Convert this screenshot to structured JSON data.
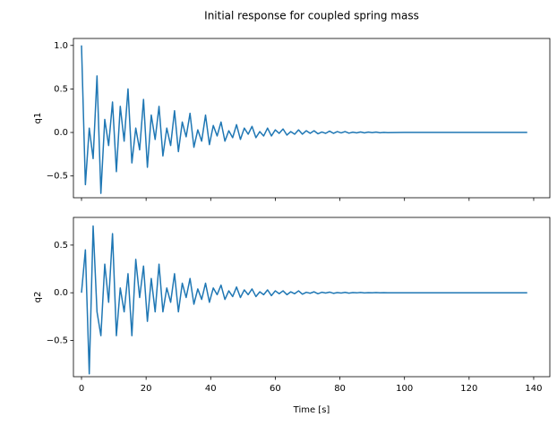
{
  "chart_data": [
    {
      "type": "line",
      "title": "Initial response for coupled spring mass",
      "ylabel": "q1",
      "color": "#1f77b4",
      "x": [
        0,
        1.2,
        2.4,
        3.6,
        4.8,
        6,
        7.2,
        8.4,
        9.6,
        10.8,
        12,
        13.2,
        14.4,
        15.6,
        16.8,
        18,
        19.2,
        20.4,
        21.6,
        22.8,
        24,
        25.2,
        26.4,
        27.6,
        28.8,
        30,
        31.2,
        32.4,
        33.6,
        34.8,
        36,
        37.2,
        38.4,
        39.6,
        40.8,
        42,
        43.2,
        44.4,
        45.6,
        46.8,
        48,
        49.2,
        50.4,
        51.6,
        52.8,
        54,
        55.2,
        56.4,
        57.6,
        58.8,
        60,
        61.2,
        62.4,
        63.6,
        64.8,
        66,
        67.2,
        68.4,
        69.6,
        70.8,
        72,
        73.2,
        74.4,
        75.6,
        76.8,
        78,
        79.2,
        80.4,
        81.6,
        82.8,
        84,
        85.2,
        86.4,
        87.6,
        88.8,
        90,
        91.2,
        92.4,
        93.6,
        94.8,
        100,
        110,
        120,
        130,
        138
      ],
      "values": [
        1.0,
        -0.6,
        0.05,
        -0.3,
        0.65,
        -0.7,
        0.15,
        -0.15,
        0.35,
        -0.45,
        0.3,
        -0.1,
        0.5,
        -0.35,
        0.05,
        -0.2,
        0.38,
        -0.4,
        0.2,
        -0.08,
        0.3,
        -0.27,
        0.05,
        -0.15,
        0.25,
        -0.22,
        0.12,
        -0.05,
        0.22,
        -0.17,
        0.03,
        -0.1,
        0.2,
        -0.14,
        0.08,
        -0.04,
        0.12,
        -0.1,
        0.02,
        -0.06,
        0.09,
        -0.08,
        0.05,
        -0.02,
        0.07,
        -0.06,
        0.01,
        -0.04,
        0.05,
        -0.04,
        0.03,
        -0.01,
        0.04,
        -0.03,
        0.01,
        -0.02,
        0.03,
        -0.02,
        0.02,
        -0.01,
        0.02,
        -0.015,
        0.005,
        -0.01,
        0.015,
        -0.01,
        0.01,
        -0.005,
        0.01,
        -0.008,
        0.003,
        -0.005,
        0.006,
        -0.005,
        0.004,
        -0.002,
        0.004,
        -0.003,
        0.001,
        -0.002,
        0,
        0,
        0,
        0,
        0
      ],
      "xlim": [
        -2.5,
        145
      ],
      "xticks": [
        0,
        20,
        40,
        60,
        80,
        100,
        120,
        140
      ],
      "ylim": [
        -0.75,
        1.08
      ],
      "yticks": [
        {
          "value": -0.5,
          "label": "−0.5"
        },
        {
          "value": 0,
          "label": "0.0"
        },
        0.5,
        {
          "value": 1,
          "label": "1.0"
        }
      ]
    },
    {
      "type": "line",
      "ylabel": "q2",
      "xlabel": "Time [s]",
      "color": "#1f77b4",
      "x": [
        0,
        1.2,
        2.4,
        3.6,
        4.8,
        6,
        7.2,
        8.4,
        9.6,
        10.8,
        12,
        13.2,
        14.4,
        15.6,
        16.8,
        18,
        19.2,
        20.4,
        21.6,
        22.8,
        24,
        25.2,
        26.4,
        27.6,
        28.8,
        30,
        31.2,
        32.4,
        33.6,
        34.8,
        36,
        37.2,
        38.4,
        39.6,
        40.8,
        42,
        43.2,
        44.4,
        45.6,
        46.8,
        48,
        49.2,
        50.4,
        51.6,
        52.8,
        54,
        55.2,
        56.4,
        57.6,
        58.8,
        60,
        61.2,
        62.4,
        63.6,
        64.8,
        66,
        67.2,
        68.4,
        69.6,
        70.8,
        72,
        73.2,
        74.4,
        75.6,
        76.8,
        78,
        79.2,
        80.4,
        81.6,
        82.8,
        84,
        85.2,
        86.4,
        87.6,
        88.8,
        90,
        91.2,
        92.4,
        93.6,
        94.8,
        100,
        110,
        120,
        130,
        138
      ],
      "values": [
        0,
        0.45,
        -0.85,
        0.7,
        -0.2,
        -0.45,
        0.3,
        -0.1,
        0.62,
        -0.45,
        0.05,
        -0.2,
        0.2,
        -0.45,
        0.35,
        -0.05,
        0.28,
        -0.3,
        0.15,
        -0.2,
        0.3,
        -0.2,
        0.05,
        -0.1,
        0.2,
        -0.2,
        0.1,
        -0.05,
        0.15,
        -0.12,
        0.04,
        -0.07,
        0.1,
        -0.1,
        0.05,
        -0.02,
        0.08,
        -0.07,
        0.02,
        -0.04,
        0.06,
        -0.05,
        0.03,
        -0.02,
        0.04,
        -0.04,
        0.01,
        -0.02,
        0.03,
        -0.03,
        0.02,
        -0.01,
        0.02,
        -0.02,
        0.01,
        -0.01,
        0.02,
        -0.015,
        0.005,
        -0.005,
        0.01,
        -0.01,
        0.005,
        -0.003,
        0.007,
        -0.006,
        0.002,
        -0.003,
        0.004,
        -0.004,
        0.002,
        -0.001,
        0.003,
        -0.002,
        0.001,
        -0.001,
        0.002,
        -0.001,
        0.001,
        -0.001,
        0,
        0,
        0,
        0,
        0
      ],
      "xlim": [
        -2.5,
        145
      ],
      "xticks": [
        0,
        20,
        40,
        60,
        80,
        100,
        120,
        140
      ],
      "ylim": [
        -0.88,
        0.79
      ],
      "yticks": [
        {
          "value": -0.5,
          "label": "−0.5"
        },
        {
          "value": 0,
          "label": "0.0"
        },
        0.5
      ]
    }
  ]
}
